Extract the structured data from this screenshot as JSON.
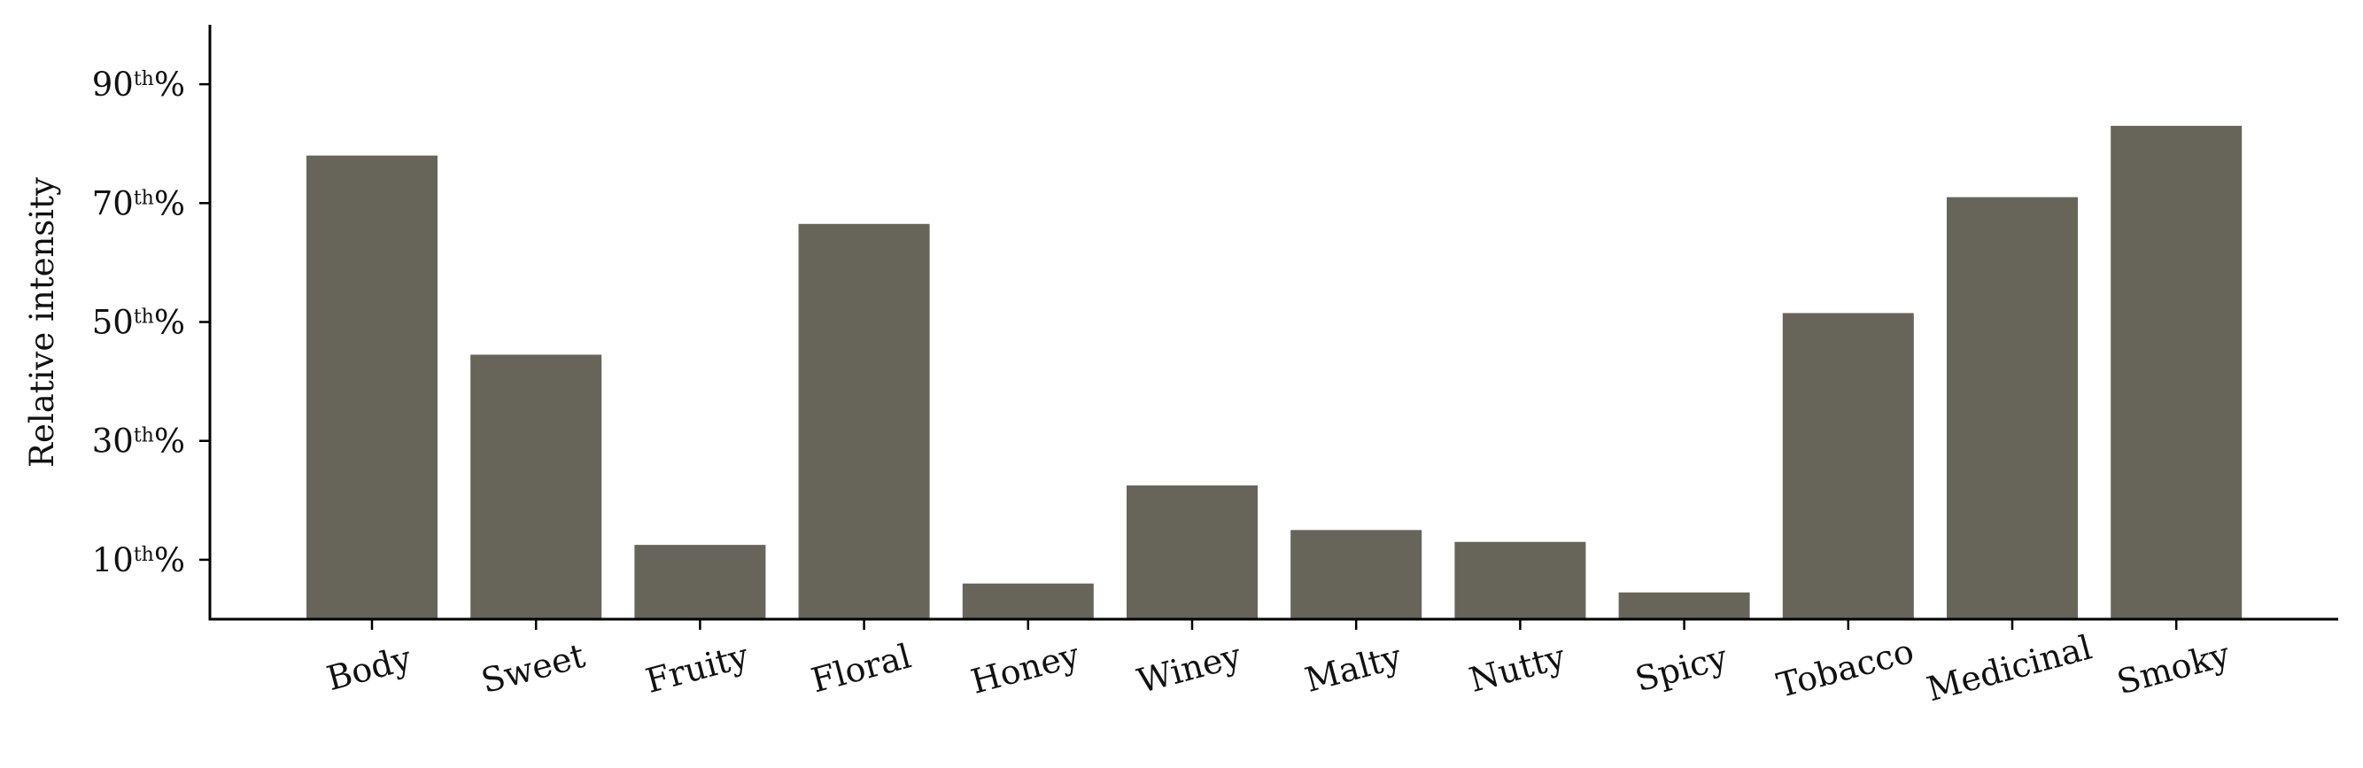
{
  "chart_data": {
    "type": "bar",
    "categories": [
      "Body",
      "Sweet",
      "Fruity",
      "Floral",
      "Honey",
      "Winey",
      "Malty",
      "Nutty",
      "Spicy",
      "Tobacco",
      "Medicinal",
      "Smoky"
    ],
    "values": [
      78,
      44.5,
      12.5,
      66.5,
      6,
      22.5,
      15,
      13,
      4.5,
      51.5,
      71,
      83
    ],
    "xlabel": "",
    "ylabel": "Relative intensity",
    "ylim": [
      0,
      100
    ],
    "yticks": [
      {
        "value": 10,
        "num": "10",
        "sup": "th",
        "suffix": "%"
      },
      {
        "value": 30,
        "num": "30",
        "sup": "th",
        "suffix": "%"
      },
      {
        "value": 50,
        "num": "50",
        "sup": "th",
        "suffix": "%"
      },
      {
        "value": 70,
        "num": "70",
        "sup": "th",
        "suffix": "%"
      },
      {
        "value": 90,
        "num": "90",
        "sup": "th",
        "suffix": "%"
      }
    ],
    "bar_color": "#67645a",
    "grid": false,
    "legend": "none"
  }
}
